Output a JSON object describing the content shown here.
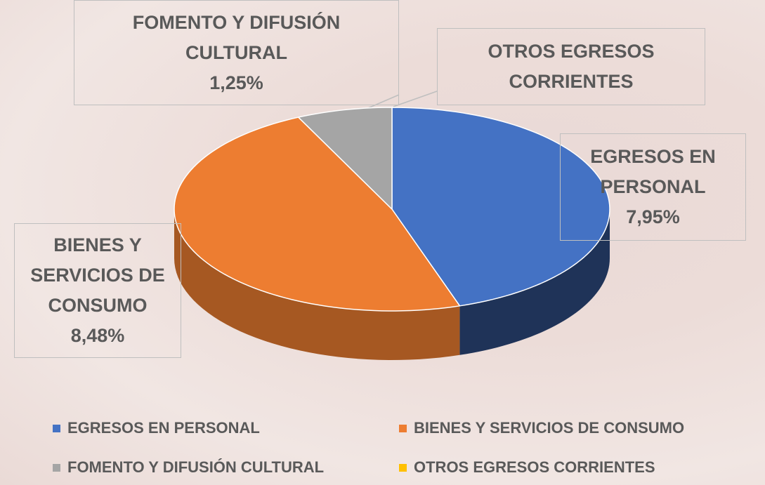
{
  "chart_data": {
    "type": "pie3d",
    "categories": [
      "EGRESOS EN PERSONAL",
      "BIENES Y SERVICIOS DE CONSUMO",
      "FOMENTO Y DIFUSIÓN CULTURAL",
      "OTROS EGRESOS CORRIENTES"
    ],
    "values": [
      7.95,
      8.48,
      1.25,
      0
    ],
    "value_labels": [
      "7,95%",
      "8,48%",
      "1,25%",
      null
    ],
    "colors": [
      "#4472c4",
      "#ed7d31",
      "#a5a5a5",
      "#ffc000"
    ],
    "legend": "bottom"
  }
}
